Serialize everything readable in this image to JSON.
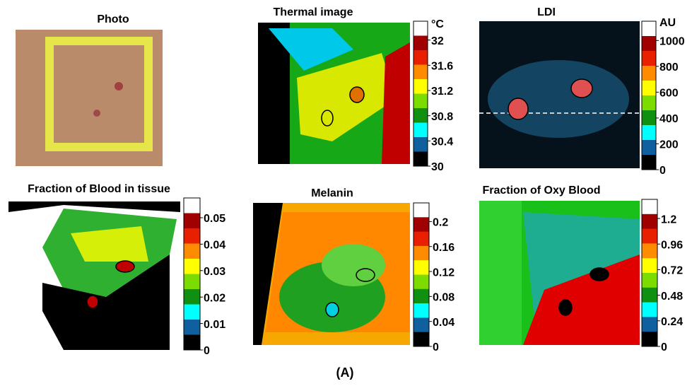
{
  "caption": "(A)",
  "panels": [
    {
      "title": "Photo"
    },
    {
      "title": "Thermal image",
      "unit": "°C",
      "ticks": [
        32,
        31.6,
        31.2,
        30.8,
        30.4,
        30
      ]
    },
    {
      "title": "LDI",
      "unit": "AU",
      "ticks": [
        1000,
        800,
        600,
        400,
        200,
        0
      ]
    },
    {
      "title": "Fraction of Blood in tissue",
      "ticks": [
        0.05,
        0.04,
        0.03,
        0.02,
        0.01,
        0
      ]
    },
    {
      "title": "Melanin",
      "ticks": [
        0.2,
        0.16,
        0.12,
        0.08,
        0.04,
        0
      ]
    },
    {
      "title": "Fraction of Oxy Blood",
      "ticks": [
        1.2,
        0.96,
        0.72,
        0.48,
        0.24,
        0
      ]
    }
  ]
}
